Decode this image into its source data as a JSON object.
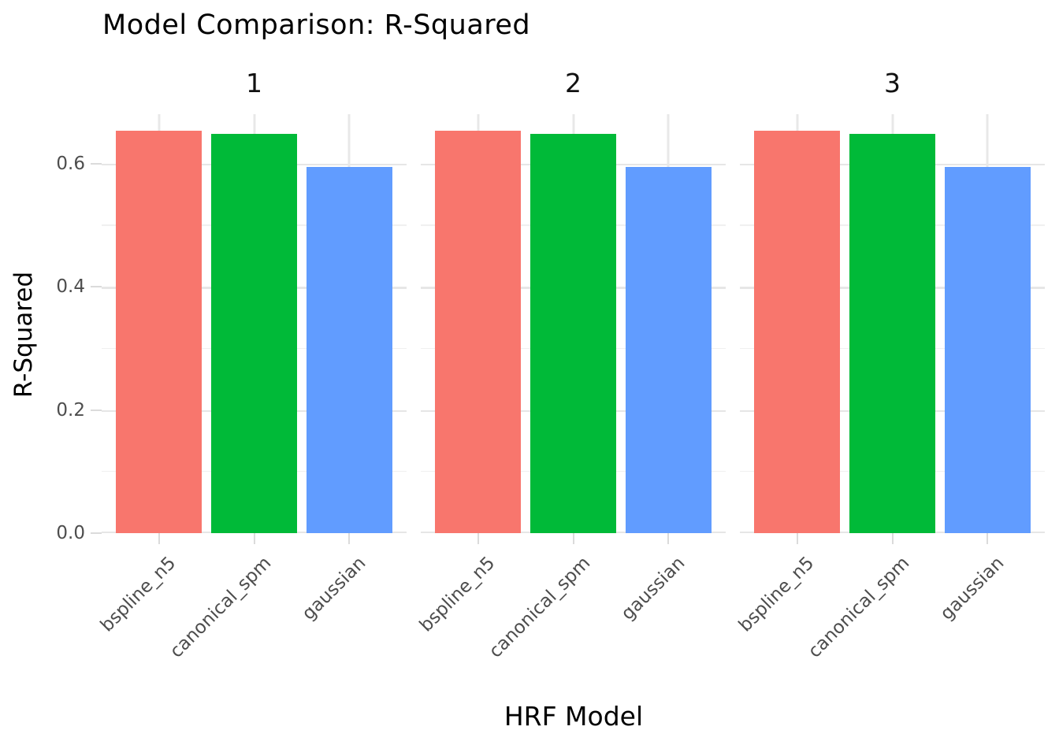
{
  "chart_data": {
    "type": "bar",
    "title": "Model Comparison: R-Squared",
    "xlabel": "HRF Model",
    "ylabel": "R-Squared",
    "categories": [
      "bspline_n5",
      "canonical_spm",
      "gaussian"
    ],
    "bar_colors": [
      "#F8766D",
      "#00BA38",
      "#619CFF"
    ],
    "facets": [
      {
        "label": "1",
        "values": [
          0.653,
          0.648,
          0.594
        ]
      },
      {
        "label": "2",
        "values": [
          0.653,
          0.648,
          0.594
        ]
      },
      {
        "label": "3",
        "values": [
          0.653,
          0.648,
          0.594
        ]
      }
    ],
    "yticks": [
      0.0,
      0.2,
      0.4,
      0.6
    ],
    "ytick_labels": [
      "0.0",
      "0.2",
      "0.4",
      "0.6"
    ],
    "minor_yticks": [
      0.1,
      0.3,
      0.5
    ],
    "ylim": [
      0,
      0.68
    ],
    "grid": "major+minor, light gray, white background",
    "legend": "none",
    "text_colors": {
      "titles": "#000000",
      "tick_labels": "#4d4d4d"
    }
  }
}
